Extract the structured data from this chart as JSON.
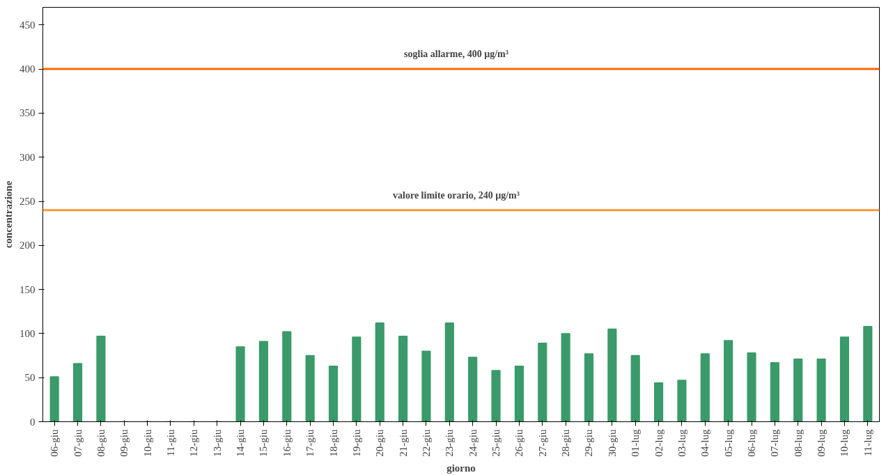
{
  "chart_data": {
    "type": "bar",
    "xlabel": "giorno",
    "ylabel": "concentrazione",
    "categories": [
      "06-giu",
      "07-giu",
      "08-giu",
      "09-giu",
      "10-giu",
      "11-giu",
      "12-giu",
      "13-giu",
      "14-giu",
      "15-giu",
      "16-giu",
      "17-giu",
      "18-giu",
      "19-giu",
      "20-giu",
      "21-giu",
      "22-giu",
      "23-giu",
      "24-giu",
      "25-giu",
      "26-giu",
      "27-giu",
      "28-giu",
      "29-giu",
      "30-giu",
      "01-lug",
      "02-lug",
      "03-lug",
      "04-lug",
      "05-lug",
      "06-lug",
      "07-lug",
      "08-lug",
      "09-lug",
      "10-lug",
      "11-lug"
    ],
    "values": [
      51,
      66,
      97,
      0,
      0,
      0,
      0,
      0,
      85,
      91,
      102,
      75,
      63,
      96,
      112,
      97,
      80,
      112,
      73,
      58,
      63,
      89,
      100,
      77,
      105,
      75,
      44,
      47,
      77,
      92,
      78,
      67,
      71,
      71,
      96,
      108
    ],
    "color": "#3a9a6a",
    "ylim": [
      0,
      470
    ],
    "yticks": [
      0,
      50,
      100,
      150,
      200,
      250,
      300,
      350,
      400,
      450
    ],
    "grid": false,
    "ref_lines": [
      {
        "axis": "y",
        "value": 400,
        "label": "soglia allarme,     400 µg/m³",
        "color": "#ff6600"
      },
      {
        "axis": "y",
        "value": 240,
        "label": "valore limite orario,     240 µg/m³",
        "color": "#ff9933"
      }
    ]
  }
}
